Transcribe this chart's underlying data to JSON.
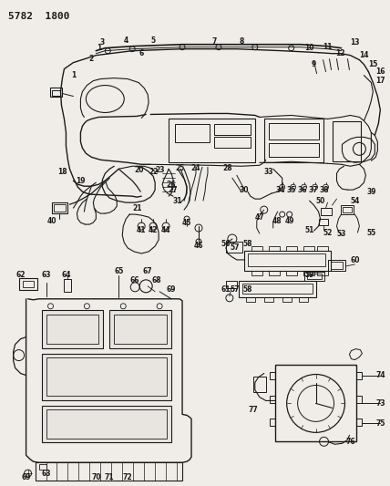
{
  "title": "5782  1800",
  "bg_color": "#f0ede8",
  "line_color": "#1a1a1a",
  "fig_width": 4.28,
  "fig_height": 5.33,
  "dpi": 100
}
